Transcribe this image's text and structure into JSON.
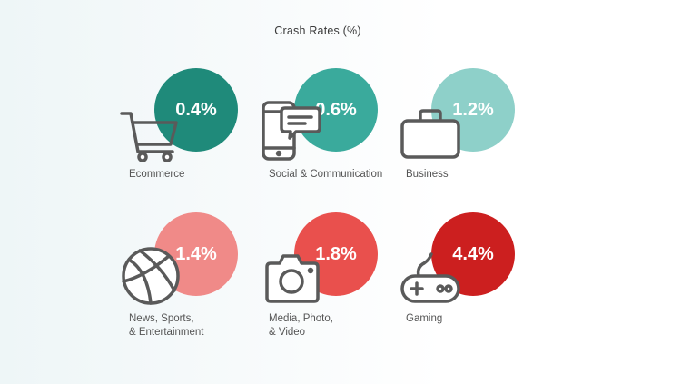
{
  "chart_data": {
    "type": "bubble-infographic",
    "title": "Crash Rates (%)",
    "unit": "%",
    "items": [
      {
        "category_lines": [
          "Ecommerce"
        ],
        "value": 0.4,
        "display": "0.4%",
        "color": "#1f8a7a",
        "icon": "shopping-cart-icon"
      },
      {
        "category_lines": [
          "Social & Communication"
        ],
        "value": 0.6,
        "display": "0.6%",
        "color": "#3aaa9c",
        "icon": "phone-chat-icon"
      },
      {
        "category_lines": [
          "Business"
        ],
        "value": 1.2,
        "display": "1.2%",
        "color": "#8ed0c9",
        "icon": "briefcase-icon"
      },
      {
        "category_lines": [
          "News, Sports,",
          "& Entertainment"
        ],
        "value": 1.4,
        "display": "1.4%",
        "color": "#f08a88",
        "icon": "basketball-icon"
      },
      {
        "category_lines": [
          "Media, Photo,",
          "& Video"
        ],
        "value": 1.8,
        "display": "1.8%",
        "color": "#e9504d",
        "icon": "camera-icon"
      },
      {
        "category_lines": [
          "Gaming"
        ],
        "value": 4.4,
        "display": "4.4%",
        "color": "#cc1f1f",
        "icon": "gamepad-icon"
      }
    ]
  }
}
